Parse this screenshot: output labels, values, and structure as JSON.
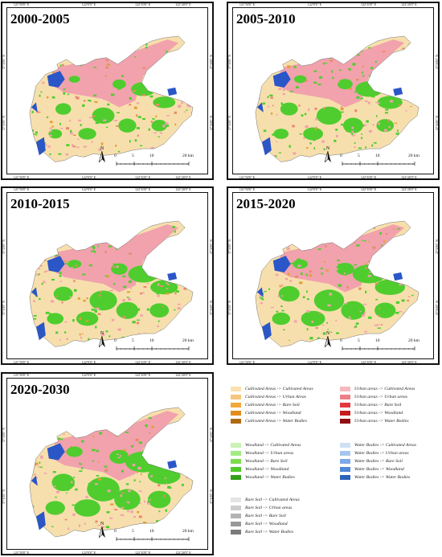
{
  "panels": [
    {
      "title": "2000-2005",
      "ticks_top": [
        "121°50'0\" E",
        "122°0'0\" E",
        "122°10'0\" E",
        "122°20'0\" E"
      ],
      "ticks_bottom": [
        "121°50'0\" E",
        "122°0'0\" E",
        "122°10'0\" E",
        "122°20'0\" E"
      ],
      "ticks_left": [
        "37°20'0\" N",
        "37°10'0\" N"
      ],
      "ticks_right": [
        "37°20'0\" N",
        "37°10'0\" N"
      ],
      "scale": [
        "0",
        "5",
        "10",
        "20 km"
      ],
      "north": "N"
    },
    {
      "title": "2005-2010",
      "ticks_top": [
        "121°50'0\" E",
        "122°0'0\" E",
        "122°10'0\" E",
        "122°20'0\" E"
      ],
      "ticks_bottom": [
        "121°50'0\" E",
        "122°0'0\" E",
        "122°10'0\" E",
        "122°20'0\" E"
      ],
      "ticks_left": [
        "37°20'0\" N",
        "37°10'0\" N"
      ],
      "ticks_right": [
        "37°20'0\" N",
        "37°10'0\" N"
      ],
      "scale": [
        "0",
        "5",
        "10",
        "20 km"
      ],
      "north": "N"
    },
    {
      "title": "2010-2015",
      "ticks_top": [
        "121°50'0\" E",
        "122°0'0\" E",
        "122°10'0\" E",
        "122°20'0\" E"
      ],
      "ticks_bottom": [
        "121°50'0\" E",
        "122°0'0\" E",
        "122°10'0\" E",
        "122°20'0\" E"
      ],
      "ticks_left": [
        "37°20'0\" N",
        "37°10'0\" N"
      ],
      "ticks_right": [
        "37°20'0\" N",
        "37°10'0\" N"
      ],
      "scale": [
        "0",
        "5",
        "10",
        "20 km"
      ],
      "north": "N"
    },
    {
      "title": "2015-2020",
      "ticks_top": [
        "121°50'0\" E",
        "122°0'0\" E",
        "122°10'0\" E",
        "122°20'0\" E"
      ],
      "ticks_bottom": [
        "121°50'0\" E",
        "122°0'0\" E",
        "122°10'0\" E",
        "122°20'0\" E"
      ],
      "ticks_left": [
        "37°20'0\" N",
        "37°10'0\" N"
      ],
      "ticks_right": [
        "37°20'0\" N",
        "37°10'0\" N"
      ],
      "scale": [
        "0",
        "5",
        "10",
        "20 km"
      ],
      "north": "N"
    },
    {
      "title": "2020-2030",
      "ticks_top": [
        "121°50'0\" E",
        "122°0'0\" E",
        "122°10'0\" E",
        "122°20'0\" E"
      ],
      "ticks_bottom": [
        "121°50'0\" E",
        "122°0'0\" E",
        "122°10'0\" E",
        "122°20'0\" E"
      ],
      "ticks_left": [
        "37°20'0\" N",
        "37°10'0\" N"
      ],
      "ticks_right": [
        "37°20'0\" N",
        "37°10'0\" N"
      ],
      "scale": [
        "0",
        "5",
        "10",
        "20 km"
      ],
      "north": "N"
    }
  ],
  "colors": {
    "cultivated": "#f7dfad",
    "urban": "#f1a2ac",
    "woodland": "#4fcd2e",
    "water": "#2a56c8",
    "bare": "#a9a9a9",
    "orange": "#e0a030",
    "darkred": "#b71c1c"
  },
  "legend": [
    {
      "group": "cultivated",
      "items": [
        {
          "label": "Cultivated Areas  -> Cultivated Areas",
          "color": "#fbe1b0"
        },
        {
          "label": "Cultivated Areas  -> Urban Areas",
          "color": "#f7c57c"
        },
        {
          "label": "Cultivated Areas  -> Bare Soil",
          "color": "#f2a93a"
        },
        {
          "label": "Cultivated Areas  -> Woodland",
          "color": "#e38b1c"
        },
        {
          "label": "Cultivated Areas  -> Water Bodies",
          "color": "#b06a12"
        }
      ]
    },
    {
      "group": "urban",
      "items": [
        {
          "label": "Urban areas -> Cultivated Areas",
          "color": "#f6b8bd"
        },
        {
          "label": "Urban areas -> Urban areas",
          "color": "#ef7f86"
        },
        {
          "label": "Urban areas -> Bare Soil",
          "color": "#e3383e"
        },
        {
          "label": "Urban areas -> Woodland",
          "color": "#c61a1f"
        },
        {
          "label": "Urban areas -> Water Bodies",
          "color": "#8f0d11"
        }
      ]
    },
    {
      "group": "woodland",
      "items": [
        {
          "label": "Woodland -> Cultivated Areas",
          "color": "#c9f2b4"
        },
        {
          "label": "Woodland -> Urban areas",
          "color": "#a3eb83"
        },
        {
          "label": "Woodland -> Bare Soil",
          "color": "#7edd4f"
        },
        {
          "label": "Woodland -> Woodland",
          "color": "#52c92a"
        },
        {
          "label": "Woodland -> Water Bodies",
          "color": "#33a01a"
        }
      ]
    },
    {
      "group": "water",
      "items": [
        {
          "label": "Water Bodies -> Cultivated Areas",
          "color": "#cfe0f5"
        },
        {
          "label": "Water Bodies -> Urban areas",
          "color": "#a7c6ef"
        },
        {
          "label": "Water Bodies -> Bare Soil",
          "color": "#7fa9e6"
        },
        {
          "label": "Water Bodies -> Woodland",
          "color": "#4f86d6"
        },
        {
          "label": "Water Bodies -> Water Bodies",
          "color": "#2c62b8"
        }
      ]
    },
    {
      "group": "bare",
      "items": [
        {
          "label": "Bare Soil -> Cultivated Areas",
          "color": "#e4e4e4"
        },
        {
          "label": "Bare Soil -> Urban areas",
          "color": "#cdcdcd"
        },
        {
          "label": "Bare Soil -> Bare Soil",
          "color": "#b3b3b3"
        },
        {
          "label": "Bare Soil -> Woodland",
          "color": "#999999"
        },
        {
          "label": "Bare Soil -> Water Bodies",
          "color": "#7b7b7b"
        }
      ]
    }
  ]
}
